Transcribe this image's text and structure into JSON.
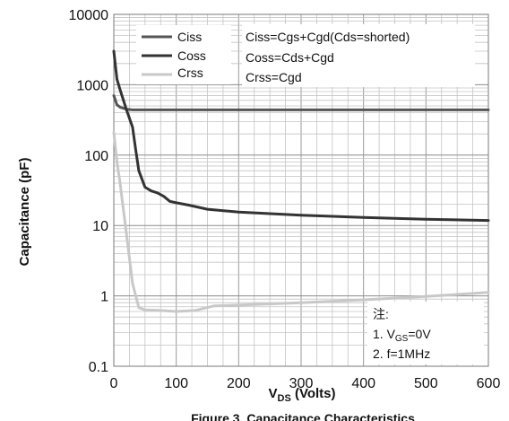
{
  "chart_data": {
    "type": "line",
    "title": "",
    "xlabel": "V",
    "xlabel_sub": "DS",
    "xlabel_suffix": " (Volts)",
    "ylabel": "Capacitance (pF)",
    "xlim": [
      0,
      600
    ],
    "ylim": [
      0.1,
      10000
    ],
    "yscale": "log",
    "grid": true,
    "legend_position": "top-left",
    "x_ticks": [
      "0",
      "100",
      "200",
      "300",
      "400",
      "500",
      "600"
    ],
    "y_ticks": [
      "0.1",
      "1",
      "10",
      "100",
      "1000",
      "10000"
    ],
    "series": [
      {
        "name": "Ciss",
        "color": "#555555",
        "x": [
          0,
          5,
          10,
          20,
          30,
          50,
          100,
          200,
          300,
          400,
          500,
          600
        ],
        "y": [
          700,
          520,
          480,
          450,
          440,
          440,
          440,
          440,
          440,
          440,
          440,
          440
        ]
      },
      {
        "name": "Coss",
        "color": "#333333",
        "x": [
          0,
          5,
          10,
          20,
          30,
          35,
          40,
          50,
          60,
          70,
          80,
          90,
          100,
          120,
          150,
          200,
          300,
          400,
          500,
          600
        ],
        "y": [
          3000,
          1200,
          850,
          450,
          250,
          120,
          60,
          35,
          31,
          29,
          26,
          22,
          21,
          19.5,
          17,
          15.5,
          14,
          13,
          12.3,
          11.8
        ]
      },
      {
        "name": "Crss",
        "color": "#c8c8c8",
        "x": [
          0,
          5,
          10,
          20,
          30,
          40,
          50,
          75,
          100,
          130,
          160,
          200,
          300,
          400,
          500,
          600
        ],
        "y": [
          210,
          80,
          40,
          8,
          1.5,
          0.68,
          0.63,
          0.62,
          0.6,
          0.62,
          0.72,
          0.74,
          0.8,
          0.88,
          0.98,
          1.12
        ]
      }
    ],
    "annotations": {
      "formulas": [
        "Ciss=Cgs+Cgd(Cds=shorted)",
        "Coss=Cds+Cgd",
        "Crss=Cgd"
      ],
      "notes": {
        "header": "注:",
        "line1_prefix": "1. V",
        "line1_sub": "GS",
        "line1_suffix": "=0V",
        "line2": "2. f=1MHz"
      }
    },
    "caption": "Figure 3. Capacitance Characteristics"
  }
}
